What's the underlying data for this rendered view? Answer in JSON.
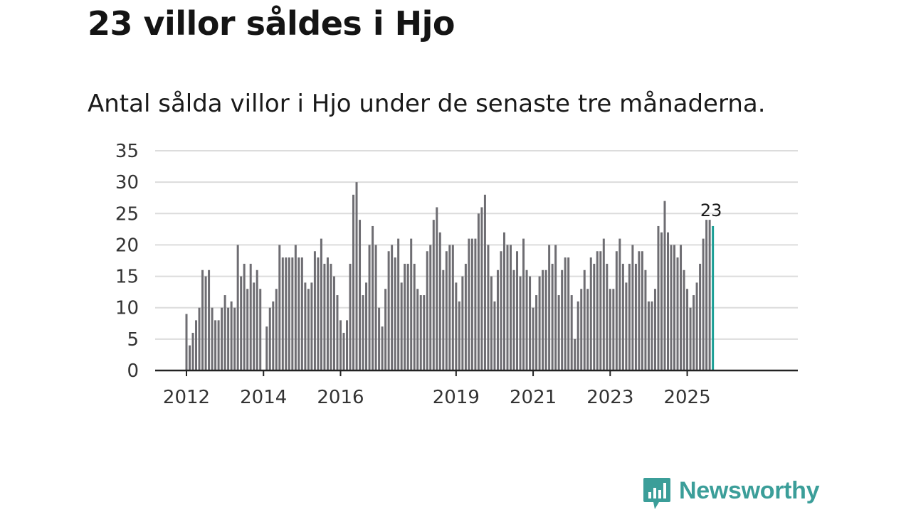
{
  "headline": "23 villor såldes i Hjo",
  "subtitle": "Antal sålda villor i Hjo under de senaste tre månaderna.",
  "brand": {
    "name": "Newsworthy",
    "icon": "bar-chart-speech-bubble-icon",
    "color": "#3b9e99"
  },
  "chart_data": {
    "type": "bar",
    "title": "23 villor såldes i Hjo",
    "subtitle": "Antal sålda villor i Hjo under de senaste tre månaderna.",
    "xlabel": "",
    "ylabel": "",
    "ylim": [
      0,
      35
    ],
    "y_ticks": [
      "0",
      "5",
      "10",
      "15",
      "20",
      "25",
      "30",
      "35"
    ],
    "x_tick_labels": [
      "2012",
      "2014",
      "2016",
      "2019",
      "2021",
      "2023",
      "2025"
    ],
    "start": "2012-01",
    "frequency": "monthly",
    "grid": true,
    "bar_color": "#6e6d72",
    "highlight_color": "#1a9e95",
    "highlight_label": "23",
    "values": [
      9,
      4,
      6,
      8,
      10,
      16,
      15,
      16,
      10,
      8,
      8,
      10,
      12,
      10,
      11,
      10,
      20,
      15,
      17,
      13,
      17,
      14,
      16,
      13,
      0,
      7,
      10,
      11,
      13,
      20,
      18,
      18,
      18,
      18,
      20,
      18,
      18,
      14,
      13,
      14,
      19,
      18,
      21,
      17,
      18,
      17,
      15,
      12,
      8,
      6,
      8,
      17,
      28,
      30,
      24,
      12,
      14,
      20,
      23,
      20,
      10,
      7,
      13,
      19,
      20,
      18,
      21,
      14,
      17,
      17,
      21,
      17,
      13,
      12,
      12,
      19,
      20,
      24,
      26,
      22,
      16,
      19,
      20,
      20,
      14,
      11,
      15,
      17,
      21,
      21,
      21,
      25,
      26,
      28,
      20,
      15,
      11,
      16,
      19,
      22,
      20,
      20,
      16,
      19,
      15,
      21,
      16,
      15,
      10,
      12,
      15,
      16,
      16,
      20,
      17,
      20,
      12,
      16,
      18,
      18,
      12,
      5,
      11,
      13,
      16,
      13,
      18,
      17,
      19,
      19,
      21,
      17,
      13,
      13,
      19,
      21,
      17,
      14,
      17,
      20,
      17,
      19,
      19,
      16,
      11,
      11,
      13,
      23,
      22,
      27,
      22,
      20,
      20,
      18,
      20,
      16,
      13,
      10,
      12,
      14,
      17,
      21,
      24,
      24,
      23
    ]
  }
}
